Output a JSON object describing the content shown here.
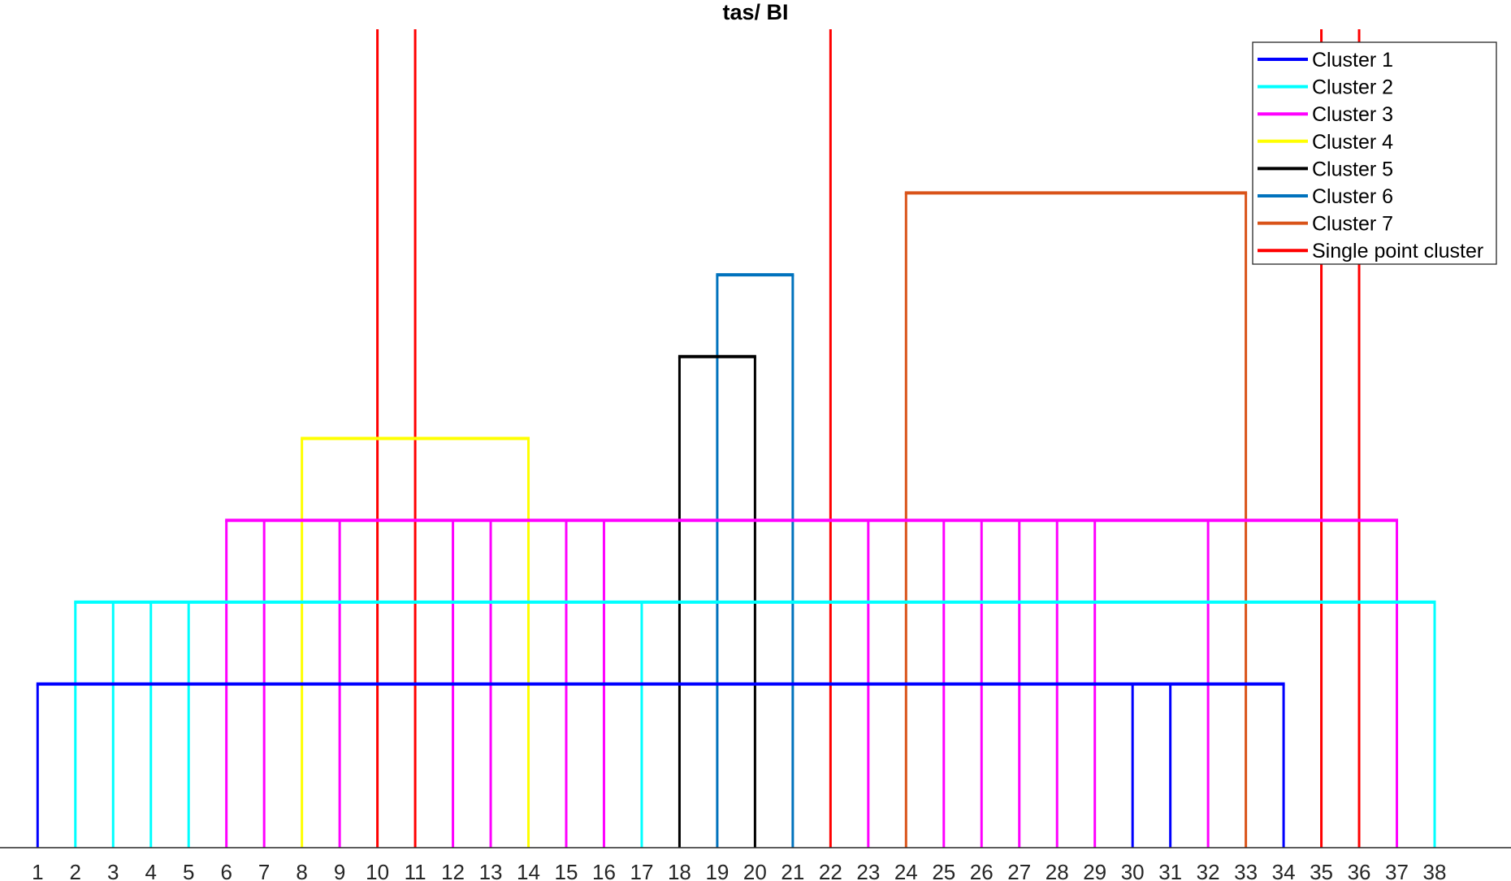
{
  "chart_data": {
    "type": "dendrogram",
    "title": "tas/ BI",
    "xlabel": "",
    "ylabel": "",
    "categories": [
      "1",
      "2",
      "3",
      "4",
      "5",
      "6",
      "7",
      "8",
      "9",
      "10",
      "11",
      "12",
      "13",
      "14",
      "15",
      "16",
      "17",
      "18",
      "19",
      "20",
      "21",
      "22",
      "23",
      "24",
      "25",
      "26",
      "27",
      "28",
      "29",
      "30",
      "31",
      "32",
      "33",
      "34",
      "35",
      "36",
      "37",
      "38"
    ],
    "ylim": [
      0,
      10
    ],
    "y_ticks_shown": false,
    "grid": false,
    "legend_position": "top-right",
    "clusters": [
      {
        "name": "Cluster 1",
        "color": "#0000FF",
        "members": [
          1,
          30,
          31,
          34
        ],
        "height": 2
      },
      {
        "name": "Cluster 2",
        "color": "#00FFFF",
        "members": [
          2,
          3,
          4,
          5,
          17,
          38
        ],
        "height": 3
      },
      {
        "name": "Cluster 3",
        "color": "#FF00FF",
        "members": [
          6,
          7,
          9,
          12,
          13,
          15,
          16,
          23,
          25,
          26,
          27,
          28,
          29,
          32,
          37
        ],
        "height": 4
      },
      {
        "name": "Cluster 4",
        "color": "#FFFF00",
        "members": [
          8,
          14
        ],
        "height": 5
      },
      {
        "name": "Cluster 5",
        "color": "#000000",
        "members": [
          18,
          20
        ],
        "height": 6
      },
      {
        "name": "Cluster 6",
        "color": "#0072BD",
        "members": [
          19,
          21
        ],
        "height": 7
      },
      {
        "name": "Cluster 7",
        "color": "#D95319",
        "members": [
          24,
          33
        ],
        "height": 8
      }
    ],
    "single_point_cluster": {
      "name": "Single point cluster",
      "color": "#FF0000",
      "members": [
        10,
        11,
        22,
        35,
        36
      ],
      "height": 10
    }
  }
}
